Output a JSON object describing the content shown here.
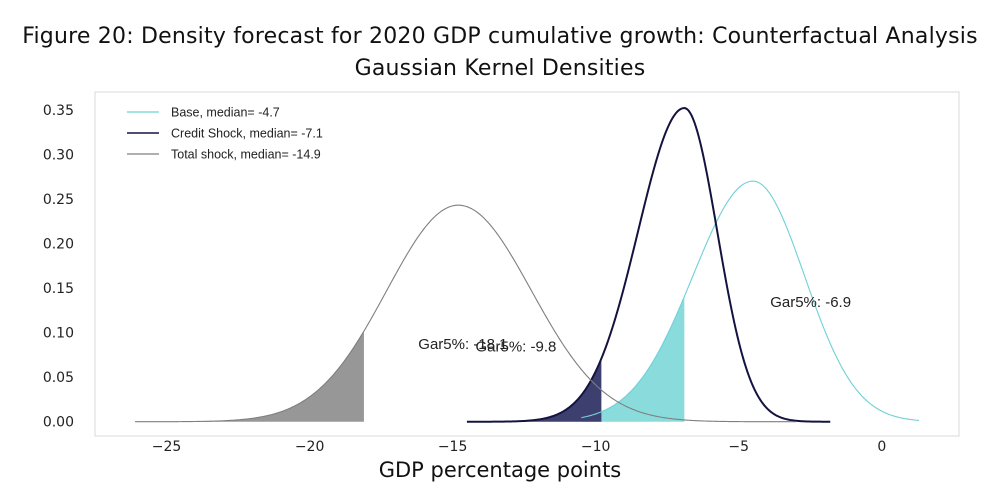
{
  "chart_data": {
    "type": "area",
    "title": "Figure 20: Density forecast for 2020 GDP cumulative growth: Counterfactual Analysis",
    "subtitle": "Gaussian Kernel Densities",
    "xlabel": "GDP percentage points",
    "ylabel": "",
    "xlim": [
      -27.5,
      2.7
    ],
    "ylim": [
      -0.016,
      0.37
    ],
    "xticks": [
      -25,
      -20,
      -15,
      -10,
      -5,
      0
    ],
    "xtick_labels": [
      "−25",
      "−20",
      "−15",
      "−10",
      "−5",
      "0"
    ],
    "yticks": [
      0.0,
      0.05,
      0.1,
      0.15,
      0.2,
      0.25,
      0.3,
      0.35
    ],
    "ytick_labels": [
      "0.00",
      "0.05",
      "0.10",
      "0.15",
      "0.20",
      "0.25",
      "0.30",
      "0.35"
    ],
    "legend_position": "top-left",
    "series": [
      {
        "name": "Base, median= -4.7",
        "color": "#6fd0d8",
        "fill": "#8adcdc",
        "peak_x": -4.5,
        "peak_y": 0.27,
        "sd_left": 2.1,
        "sd_right": 1.8,
        "x_range": [
          -10.5,
          1.3
        ],
        "gar5": -6.9,
        "gar5_label": "Gar5%: -6.9"
      },
      {
        "name": "Credit Shock, median= -7.1",
        "color": "#14133f",
        "fill": "#3d3f6e",
        "peak_x": -6.9,
        "peak_y": 0.352,
        "sd_left": 1.62,
        "sd_right": 1.15,
        "x_range": [
          -14.5,
          -1.8
        ],
        "gar5": -9.8,
        "gar5_label": "Gar5%: -9.8"
      },
      {
        "name": "Total shock, median= -14.9",
        "color": "#7f7f7f",
        "fill": "#979797",
        "peak_x": -14.8,
        "peak_y": 0.243,
        "sd_left": 2.5,
        "sd_right": 2.55,
        "x_range": [
          -26.1,
          -3.0
        ],
        "gar5": -18.1,
        "gar5_label": "Gar5%: -18.1"
      }
    ]
  }
}
